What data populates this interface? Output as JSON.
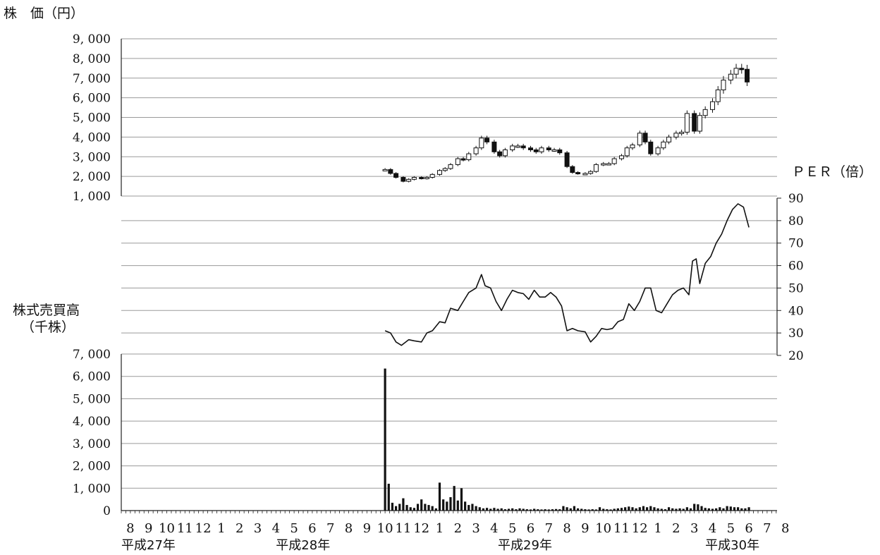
{
  "chart_data": [
    {
      "type": "candlestick",
      "ylabel": "株　価（円）",
      "ylim": [
        1000,
        9000
      ],
      "yticks": [
        "9, 000",
        "8, 000",
        "7, 000",
        "6, 000",
        "5, 000",
        "4, 000",
        "3, 000",
        "2, 000",
        "1, 000"
      ],
      "ytick_values": [
        9000,
        8000,
        7000,
        6000,
        5000,
        4000,
        3000,
        2000,
        1000
      ],
      "grid": true,
      "x_months_index_start": 0,
      "points": [
        {
          "x": 14.0,
          "v": 2350
        },
        {
          "x": 14.3,
          "v": 2150
        },
        {
          "x": 14.6,
          "v": 1950
        },
        {
          "x": 15.0,
          "v": 1750
        },
        {
          "x": 15.3,
          "v": 1850
        },
        {
          "x": 15.6,
          "v": 1950
        },
        {
          "x": 16.0,
          "v": 1900
        },
        {
          "x": 16.3,
          "v": 1950
        },
        {
          "x": 16.6,
          "v": 2100
        },
        {
          "x": 17.0,
          "v": 2300
        },
        {
          "x": 17.3,
          "v": 2400
        },
        {
          "x": 17.6,
          "v": 2600
        },
        {
          "x": 18.0,
          "v": 2900
        },
        {
          "x": 18.3,
          "v": 2850
        },
        {
          "x": 18.6,
          "v": 3150
        },
        {
          "x": 19.0,
          "v": 3450
        },
        {
          "x": 19.3,
          "v": 3950
        },
        {
          "x": 19.6,
          "v": 3750
        },
        {
          "x": 20.0,
          "v": 3250
        },
        {
          "x": 20.3,
          "v": 3050
        },
        {
          "x": 20.6,
          "v": 3350
        },
        {
          "x": 21.0,
          "v": 3550
        },
        {
          "x": 21.3,
          "v": 3550
        },
        {
          "x": 21.6,
          "v": 3450
        },
        {
          "x": 22.0,
          "v": 3350
        },
        {
          "x": 22.3,
          "v": 3250
        },
        {
          "x": 22.6,
          "v": 3450
        },
        {
          "x": 23.0,
          "v": 3350
        },
        {
          "x": 23.3,
          "v": 3350
        },
        {
          "x": 23.6,
          "v": 3200
        },
        {
          "x": 24.0,
          "v": 2500
        },
        {
          "x": 24.3,
          "v": 2200
        },
        {
          "x": 24.6,
          "v": 2150
        },
        {
          "x": 25.0,
          "v": 2150
        },
        {
          "x": 25.3,
          "v": 2250
        },
        {
          "x": 25.6,
          "v": 2600
        },
        {
          "x": 26.0,
          "v": 2650
        },
        {
          "x": 26.3,
          "v": 2650
        },
        {
          "x": 26.6,
          "v": 2900
        },
        {
          "x": 27.0,
          "v": 3050
        },
        {
          "x": 27.3,
          "v": 3450
        },
        {
          "x": 27.6,
          "v": 3600
        },
        {
          "x": 28.0,
          "v": 4200
        },
        {
          "x": 28.3,
          "v": 3750
        },
        {
          "x": 28.6,
          "v": 3150
        },
        {
          "x": 29.0,
          "v": 3450
        },
        {
          "x": 29.3,
          "v": 3750
        },
        {
          "x": 29.6,
          "v": 4000
        },
        {
          "x": 30.0,
          "v": 4200
        },
        {
          "x": 30.3,
          "v": 4250
        },
        {
          "x": 30.6,
          "v": 5200
        },
        {
          "x": 31.0,
          "v": 4300
        },
        {
          "x": 31.3,
          "v": 5100
        },
        {
          "x": 31.6,
          "v": 5400
        },
        {
          "x": 32.0,
          "v": 5800
        },
        {
          "x": 32.3,
          "v": 6400
        },
        {
          "x": 32.6,
          "v": 6900
        },
        {
          "x": 33.0,
          "v": 7200
        },
        {
          "x": 33.3,
          "v": 7500
        },
        {
          "x": 33.6,
          "v": 7450
        },
        {
          "x": 33.9,
          "v": 6800
        }
      ]
    },
    {
      "type": "line",
      "ylabel": "ＰＥＲ（倍）",
      "ylim": [
        20,
        90
      ],
      "yticks": [
        "90",
        "80",
        "70",
        "60",
        "50",
        "40",
        "30",
        "20"
      ],
      "ytick_values": [
        90,
        80,
        70,
        60,
        50,
        40,
        30,
        20
      ],
      "grid": true,
      "points": [
        {
          "x": 14.0,
          "v": 31
        },
        {
          "x": 14.3,
          "v": 30
        },
        {
          "x": 14.6,
          "v": 26
        },
        {
          "x": 14.9,
          "v": 24.5
        },
        {
          "x": 15.3,
          "v": 27
        },
        {
          "x": 15.6,
          "v": 26.5
        },
        {
          "x": 16.0,
          "v": 26
        },
        {
          "x": 16.3,
          "v": 30
        },
        {
          "x": 16.6,
          "v": 31
        },
        {
          "x": 17.0,
          "v": 35
        },
        {
          "x": 17.3,
          "v": 34.5
        },
        {
          "x": 17.6,
          "v": 41
        },
        {
          "x": 18.0,
          "v": 40
        },
        {
          "x": 18.3,
          "v": 44
        },
        {
          "x": 18.6,
          "v": 48
        },
        {
          "x": 19.0,
          "v": 50
        },
        {
          "x": 19.3,
          "v": 56
        },
        {
          "x": 19.5,
          "v": 51
        },
        {
          "x": 19.8,
          "v": 50
        },
        {
          "x": 20.1,
          "v": 44
        },
        {
          "x": 20.4,
          "v": 40
        },
        {
          "x": 20.7,
          "v": 45
        },
        {
          "x": 21.0,
          "v": 49
        },
        {
          "x": 21.3,
          "v": 48
        },
        {
          "x": 21.6,
          "v": 47.5
        },
        {
          "x": 21.9,
          "v": 45
        },
        {
          "x": 22.2,
          "v": 49
        },
        {
          "x": 22.5,
          "v": 46
        },
        {
          "x": 22.8,
          "v": 46
        },
        {
          "x": 23.1,
          "v": 48
        },
        {
          "x": 23.4,
          "v": 46
        },
        {
          "x": 23.7,
          "v": 42
        },
        {
          "x": 24.0,
          "v": 31
        },
        {
          "x": 24.3,
          "v": 32
        },
        {
          "x": 24.6,
          "v": 31
        },
        {
          "x": 25.0,
          "v": 30.5
        },
        {
          "x": 25.3,
          "v": 26
        },
        {
          "x": 25.6,
          "v": 28.5
        },
        {
          "x": 25.9,
          "v": 32
        },
        {
          "x": 26.2,
          "v": 31.5
        },
        {
          "x": 26.5,
          "v": 32
        },
        {
          "x": 26.8,
          "v": 35
        },
        {
          "x": 27.1,
          "v": 36
        },
        {
          "x": 27.4,
          "v": 43
        },
        {
          "x": 27.7,
          "v": 40
        },
        {
          "x": 28.0,
          "v": 44
        },
        {
          "x": 28.3,
          "v": 50
        },
        {
          "x": 28.6,
          "v": 50
        },
        {
          "x": 28.9,
          "v": 40
        },
        {
          "x": 29.2,
          "v": 39
        },
        {
          "x": 29.5,
          "v": 43
        },
        {
          "x": 29.8,
          "v": 47
        },
        {
          "x": 30.1,
          "v": 49
        },
        {
          "x": 30.4,
          "v": 50
        },
        {
          "x": 30.7,
          "v": 47
        },
        {
          "x": 30.9,
          "v": 62
        },
        {
          "x": 31.1,
          "v": 63
        },
        {
          "x": 31.3,
          "v": 52
        },
        {
          "x": 31.6,
          "v": 61
        },
        {
          "x": 31.9,
          "v": 64
        },
        {
          "x": 32.2,
          "v": 70
        },
        {
          "x": 32.5,
          "v": 74
        },
        {
          "x": 32.8,
          "v": 80
        },
        {
          "x": 33.1,
          "v": 85
        },
        {
          "x": 33.4,
          "v": 87.5
        },
        {
          "x": 33.7,
          "v": 86
        },
        {
          "x": 34.0,
          "v": 77
        }
      ]
    },
    {
      "type": "bar",
      "ylabel": "株式売買高",
      "ylabel_unit": "（千株）",
      "ylim": [
        0,
        7000
      ],
      "yticks": [
        "7, 000",
        "6, 000",
        "5, 000",
        "4, 000",
        "3, 000",
        "2, 000",
        "1, 000",
        "0"
      ],
      "ytick_values": [
        7000,
        6000,
        5000,
        4000,
        3000,
        2000,
        1000,
        0
      ],
      "grid": true,
      "bars": [
        {
          "x": 14.0,
          "v": 6350
        },
        {
          "x": 14.2,
          "v": 1200
        },
        {
          "x": 14.4,
          "v": 350
        },
        {
          "x": 14.6,
          "v": 200
        },
        {
          "x": 14.8,
          "v": 300
        },
        {
          "x": 15.0,
          "v": 550
        },
        {
          "x": 15.2,
          "v": 250
        },
        {
          "x": 15.4,
          "v": 150
        },
        {
          "x": 15.6,
          "v": 120
        },
        {
          "x": 15.8,
          "v": 300
        },
        {
          "x": 16.0,
          "v": 500
        },
        {
          "x": 16.2,
          "v": 300
        },
        {
          "x": 16.4,
          "v": 250
        },
        {
          "x": 16.6,
          "v": 200
        },
        {
          "x": 16.8,
          "v": 100
        },
        {
          "x": 17.0,
          "v": 1250
        },
        {
          "x": 17.2,
          "v": 500
        },
        {
          "x": 17.4,
          "v": 400
        },
        {
          "x": 17.6,
          "v": 600
        },
        {
          "x": 17.8,
          "v": 1100
        },
        {
          "x": 18.0,
          "v": 450
        },
        {
          "x": 18.2,
          "v": 1000
        },
        {
          "x": 18.4,
          "v": 400
        },
        {
          "x": 18.6,
          "v": 250
        },
        {
          "x": 18.8,
          "v": 300
        },
        {
          "x": 19.0,
          "v": 200
        },
        {
          "x": 19.2,
          "v": 150
        },
        {
          "x": 19.4,
          "v": 100
        },
        {
          "x": 19.6,
          "v": 120
        },
        {
          "x": 19.8,
          "v": 80
        },
        {
          "x": 20.0,
          "v": 120
        },
        {
          "x": 20.2,
          "v": 80
        },
        {
          "x": 20.4,
          "v": 100
        },
        {
          "x": 20.6,
          "v": 60
        },
        {
          "x": 20.8,
          "v": 80
        },
        {
          "x": 21.0,
          "v": 100
        },
        {
          "x": 21.2,
          "v": 60
        },
        {
          "x": 21.4,
          "v": 100
        },
        {
          "x": 21.6,
          "v": 80
        },
        {
          "x": 21.8,
          "v": 60
        },
        {
          "x": 22.0,
          "v": 50
        },
        {
          "x": 22.2,
          "v": 80
        },
        {
          "x": 22.4,
          "v": 60
        },
        {
          "x": 22.6,
          "v": 50
        },
        {
          "x": 22.8,
          "v": 60
        },
        {
          "x": 23.0,
          "v": 50
        },
        {
          "x": 23.2,
          "v": 60
        },
        {
          "x": 23.4,
          "v": 70
        },
        {
          "x": 23.6,
          "v": 60
        },
        {
          "x": 23.8,
          "v": 200
        },
        {
          "x": 24.0,
          "v": 150
        },
        {
          "x": 24.2,
          "v": 100
        },
        {
          "x": 24.4,
          "v": 200
        },
        {
          "x": 24.6,
          "v": 100
        },
        {
          "x": 24.8,
          "v": 80
        },
        {
          "x": 25.0,
          "v": 60
        },
        {
          "x": 25.2,
          "v": 50
        },
        {
          "x": 25.4,
          "v": 60
        },
        {
          "x": 25.6,
          "v": 50
        },
        {
          "x": 25.8,
          "v": 150
        },
        {
          "x": 26.0,
          "v": 80
        },
        {
          "x": 26.2,
          "v": 60
        },
        {
          "x": 26.4,
          "v": 50
        },
        {
          "x": 26.6,
          "v": 80
        },
        {
          "x": 26.8,
          "v": 100
        },
        {
          "x": 27.0,
          "v": 120
        },
        {
          "x": 27.2,
          "v": 150
        },
        {
          "x": 27.4,
          "v": 180
        },
        {
          "x": 27.6,
          "v": 150
        },
        {
          "x": 27.8,
          "v": 100
        },
        {
          "x": 28.0,
          "v": 150
        },
        {
          "x": 28.2,
          "v": 200
        },
        {
          "x": 28.4,
          "v": 150
        },
        {
          "x": 28.6,
          "v": 200
        },
        {
          "x": 28.8,
          "v": 150
        },
        {
          "x": 29.0,
          "v": 100
        },
        {
          "x": 29.2,
          "v": 80
        },
        {
          "x": 29.4,
          "v": 60
        },
        {
          "x": 29.6,
          "v": 150
        },
        {
          "x": 29.8,
          "v": 100
        },
        {
          "x": 30.0,
          "v": 80
        },
        {
          "x": 30.2,
          "v": 100
        },
        {
          "x": 30.4,
          "v": 80
        },
        {
          "x": 30.6,
          "v": 150
        },
        {
          "x": 30.8,
          "v": 100
        },
        {
          "x": 31.0,
          "v": 300
        },
        {
          "x": 31.2,
          "v": 280
        },
        {
          "x": 31.4,
          "v": 200
        },
        {
          "x": 31.6,
          "v": 120
        },
        {
          "x": 31.8,
          "v": 100
        },
        {
          "x": 32.0,
          "v": 80
        },
        {
          "x": 32.2,
          "v": 100
        },
        {
          "x": 32.4,
          "v": 150
        },
        {
          "x": 32.6,
          "v": 100
        },
        {
          "x": 32.8,
          "v": 200
        },
        {
          "x": 33.0,
          "v": 180
        },
        {
          "x": 33.2,
          "v": 150
        },
        {
          "x": 33.4,
          "v": 150
        },
        {
          "x": 33.6,
          "v": 100
        },
        {
          "x": 33.8,
          "v": 100
        },
        {
          "x": 34.0,
          "v": 150
        }
      ]
    }
  ],
  "x_axis": {
    "months": [
      "8",
      "9",
      "10",
      "11",
      "12",
      "1",
      "2",
      "3",
      "4",
      "5",
      "6",
      "7",
      "8",
      "9",
      "10",
      "11",
      "12",
      "1",
      "2",
      "3",
      "4",
      "5",
      "6",
      "7",
      "8",
      "9",
      "10",
      "11",
      "12",
      "1",
      "2",
      "3",
      "4",
      "5",
      "6",
      "7",
      "8"
    ],
    "years": [
      {
        "label": "平成27年",
        "month_index": 0
      },
      {
        "label": "平成28年",
        "month_index": 8.5
      },
      {
        "label": "平成29年",
        "month_index": 20.7
      },
      {
        "label": "平成30年",
        "month_index": 32.1
      }
    ]
  }
}
